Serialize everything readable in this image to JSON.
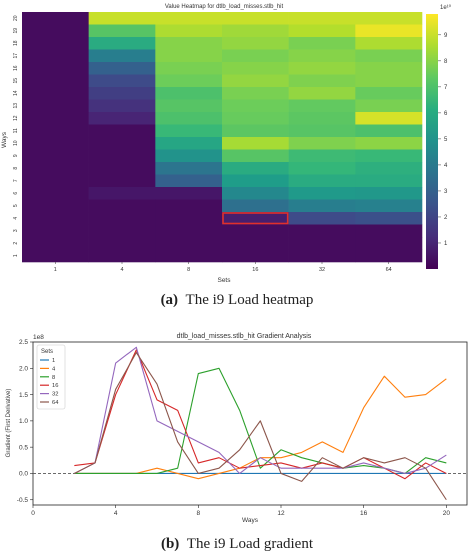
{
  "captions": {
    "a_label": "(a)",
    "a_text": "The i9 Load heatmap",
    "b_label": "(b)",
    "b_text": "The i9 Load gradient"
  },
  "chart_data": [
    {
      "type": "heatmap",
      "title": "Value Heatmap for dtlb_load_misses.stlb_hit",
      "xlabel": "Sets",
      "ylabel": "Ways",
      "x_categories": [
        "1",
        "4",
        "8",
        "16",
        "32",
        "64"
      ],
      "y_categories": [
        "20",
        "19",
        "18",
        "17",
        "16",
        "15",
        "14",
        "13",
        "12",
        "11",
        "10",
        "9",
        "8",
        "7",
        "6",
        "5",
        "4",
        "3",
        "2",
        "1"
      ],
      "colorbar": {
        "min": 0,
        "max": 9.8,
        "ticks": [
          "1",
          "2",
          "3",
          "4",
          "5",
          "6",
          "7",
          "8",
          "9"
        ],
        "exponent_label": "1e¹⁰"
      },
      "colormap": "viridis",
      "values": [
        [
          0.3,
          9.0,
          9.0,
          9.0,
          9.0,
          9.0
        ],
        [
          0.3,
          7.2,
          8.6,
          8.4,
          8.7,
          9.5
        ],
        [
          0.3,
          6.0,
          8.0,
          8.2,
          7.8,
          8.6
        ],
        [
          0.3,
          4.2,
          8.0,
          7.8,
          8.0,
          7.8
        ],
        [
          0.3,
          3.0,
          7.8,
          8.0,
          8.2,
          8.0
        ],
        [
          0.3,
          2.2,
          7.6,
          8.2,
          7.9,
          8.0
        ],
        [
          0.3,
          1.8,
          7.0,
          7.8,
          8.2,
          7.5
        ],
        [
          0.3,
          1.4,
          7.2,
          7.6,
          7.4,
          7.8
        ],
        [
          0.3,
          1.0,
          7.0,
          7.5,
          7.3,
          9.2
        ],
        [
          0.3,
          0.3,
          6.6,
          7.3,
          7.2,
          7.0
        ],
        [
          0.3,
          0.3,
          5.8,
          8.5,
          7.9,
          8.1
        ],
        [
          0.3,
          0.3,
          5.0,
          7.2,
          6.7,
          6.6
        ],
        [
          0.3,
          0.3,
          3.8,
          6.0,
          6.5,
          6.2
        ],
        [
          0.3,
          0.3,
          3.0,
          5.4,
          6.0,
          6.0
        ],
        [
          0.3,
          0.6,
          0.6,
          4.6,
          5.3,
          5.2
        ],
        [
          0.3,
          0.3,
          0.3,
          3.6,
          4.2,
          4.3
        ],
        [
          0.3,
          0.3,
          0.3,
          0.8,
          2.2,
          2.4
        ],
        [
          0.3,
          0.3,
          0.3,
          0.3,
          0.3,
          0.3
        ],
        [
          0.3,
          0.3,
          0.3,
          0.3,
          0.3,
          0.3
        ],
        [
          0.3,
          0.3,
          0.3,
          0.3,
          0.3,
          0.3
        ]
      ],
      "highlight": {
        "x": "16",
        "y": "4",
        "color": "#e0302c"
      }
    },
    {
      "type": "line",
      "title": "dtlb_load_misses.stlb_hit Gradient Analysis",
      "xlabel": "Ways",
      "ylabel": "Gradient (First Derivative)",
      "xlim": [
        0,
        21
      ],
      "ylim": [
        -0.6,
        2.5
      ],
      "y_exponent_label": "1e8",
      "xticks": [
        "0",
        "4",
        "8",
        "12",
        "16",
        "20"
      ],
      "yticks": [
        "-0.5",
        "0.0",
        "0.5",
        "1.0",
        "1.5",
        "2.0",
        "2.5"
      ],
      "baseline": 0,
      "grid": false,
      "legend_title": "Sets",
      "legend_position": "top-left",
      "x": [
        2,
        3,
        4,
        5,
        6,
        7,
        8,
        9,
        10,
        11,
        12,
        13,
        14,
        15,
        16,
        17,
        18,
        19,
        20
      ],
      "series": [
        {
          "name": "1",
          "color": "#1f77b4",
          "values": [
            0.0,
            0.0,
            0.0,
            0.0,
            0.0,
            0.0,
            0.0,
            0.0,
            0.0,
            0.0,
            0.0,
            0.0,
            0.0,
            0.0,
            0.0,
            0.0,
            0.0,
            0.0,
            0.0
          ]
        },
        {
          "name": "4",
          "color": "#ff7f0e",
          "values": [
            0.0,
            0.0,
            0.0,
            0.0,
            0.1,
            0.0,
            -0.1,
            0.0,
            0.1,
            0.3,
            0.3,
            0.4,
            0.6,
            0.4,
            1.25,
            1.85,
            1.45,
            1.5,
            1.8
          ]
        },
        {
          "name": "8",
          "color": "#2ca02c",
          "values": [
            0.0,
            0.0,
            0.0,
            0.0,
            0.0,
            0.1,
            1.9,
            2.0,
            1.2,
            0.1,
            0.45,
            0.3,
            0.2,
            0.1,
            0.15,
            0.1,
            0.0,
            0.3,
            0.2
          ]
        },
        {
          "name": "16",
          "color": "#d62728",
          "values": [
            0.15,
            0.2,
            1.5,
            2.35,
            1.4,
            1.2,
            0.2,
            0.3,
            0.1,
            0.15,
            0.2,
            0.1,
            0.2,
            0.1,
            0.3,
            0.1,
            -0.1,
            0.2,
            0.0
          ]
        },
        {
          "name": "32",
          "color": "#9467bd",
          "values": [
            0.0,
            0.2,
            2.1,
            2.4,
            1.0,
            0.8,
            0.6,
            0.4,
            0.0,
            0.3,
            0.1,
            0.1,
            0.1,
            0.1,
            0.2,
            0.1,
            0.0,
            0.1,
            0.35
          ]
        },
        {
          "name": "64",
          "color": "#8c564b",
          "values": [
            0.0,
            0.2,
            1.6,
            2.3,
            1.7,
            0.6,
            0.0,
            0.1,
            0.45,
            1.0,
            0.0,
            -0.15,
            0.3,
            0.1,
            0.3,
            0.2,
            0.3,
            0.1,
            -0.5
          ]
        }
      ]
    }
  ]
}
